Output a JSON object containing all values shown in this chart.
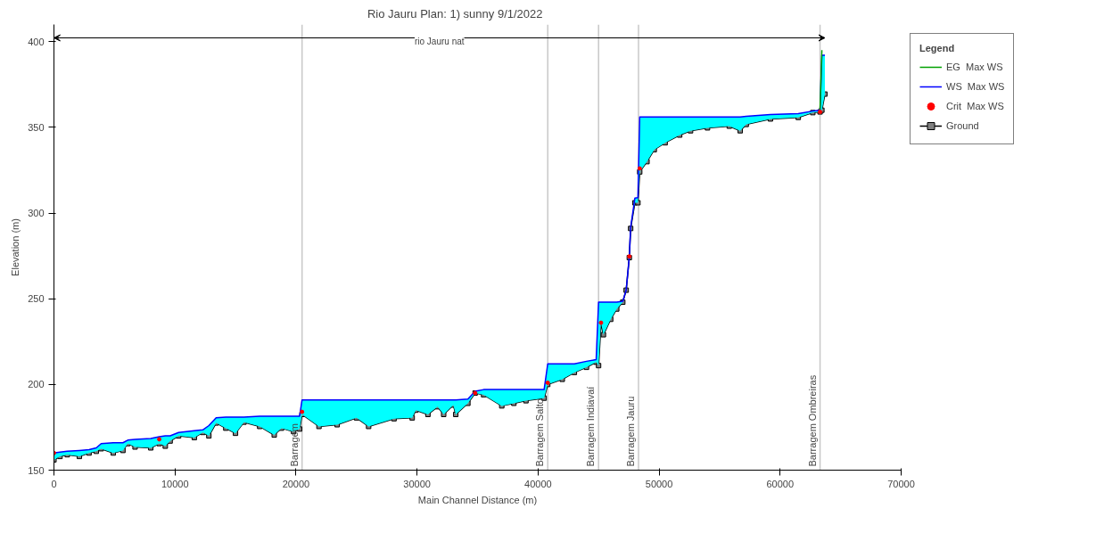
{
  "chart_data": {
    "type": "line",
    "title": "Rio Jauru       Plan:     1) sunny     9/1/2022",
    "xlabel": "Main Channel Distance (m)",
    "ylabel": "Elevation (m)",
    "legend_title": "Legend",
    "legend": "right",
    "x": [
      0,
      500,
      1100,
      2100,
      2900,
      3500,
      3900,
      4900,
      5700,
      6100,
      6700,
      8000,
      8700,
      9200,
      9600,
      10300,
      11600,
      12300,
      12800,
      13400,
      14200,
      15000,
      15700,
      17000,
      18200,
      18800,
      19800,
      20300,
      20500,
      21900,
      23400,
      25000,
      26000,
      28100,
      29600,
      29900,
      30900,
      31700,
      32200,
      33000,
      33200,
      34200,
      34800,
      35500,
      37000,
      38000,
      39000,
      40500,
      40800,
      42000,
      43000,
      44000,
      44800,
      45000,
      45200,
      45400,
      46000,
      46500,
      47000,
      47280,
      47540,
      47650,
      48000,
      48250,
      48400,
      49000,
      49600,
      50500,
      51700,
      52600,
      54000,
      55800,
      56700,
      57200,
      59200,
      61500,
      62700,
      63300,
      63450,
      63700
    ],
    "series": [
      {
        "name": "EG  Max WS",
        "color": "#00a000",
        "values": [
          null,
          null,
          null,
          null,
          null,
          null,
          null,
          null,
          null,
          null,
          null,
          null,
          null,
          null,
          null,
          null,
          null,
          null,
          null,
          null,
          null,
          null,
          null,
          null,
          null,
          null,
          null,
          null,
          null,
          null,
          null,
          null,
          null,
          null,
          null,
          null,
          null,
          null,
          null,
          null,
          null,
          null,
          null,
          null,
          null,
          null,
          null,
          null,
          null,
          null,
          null,
          null,
          null,
          null,
          null,
          null,
          null,
          null,
          null,
          null,
          null,
          null,
          null,
          null,
          null,
          null,
          null,
          null,
          null,
          null,
          null,
          null,
          null,
          null,
          null,
          null,
          null,
          360.5,
          395,
          null
        ]
      },
      {
        "name": "WS  Max WS",
        "color": "#0000ff",
        "values": [
          160,
          160.5,
          161,
          161.5,
          162,
          163,
          165.5,
          166,
          166,
          167.5,
          168,
          168.5,
          169.5,
          170,
          170,
          172,
          173,
          173.5,
          176,
          180.5,
          181,
          181,
          181,
          181.5,
          181.5,
          181.5,
          181.5,
          181.5,
          191,
          191,
          191,
          191,
          191,
          191,
          191,
          191,
          191,
          191,
          191,
          191,
          191,
          191.5,
          196,
          197,
          197,
          197,
          197,
          197,
          212,
          212,
          212,
          213.5,
          214.5,
          248,
          248,
          248,
          248,
          248,
          248.5,
          255,
          274.7,
          291.7,
          308.7,
          309,
          356,
          356,
          356,
          356,
          356,
          356,
          356,
          356,
          356,
          356.5,
          357.5,
          358,
          359.5,
          360,
          392,
          392
        ],
        "lower": [
          156,
          158,
          159,
          158,
          160,
          161,
          162.5,
          160,
          161.5,
          165.5,
          163.5,
          163,
          165.5,
          164,
          167,
          170,
          169,
          172,
          170,
          177.5,
          174.5,
          171.5,
          178,
          175.5,
          170.5,
          174.5,
          172.5,
          174,
          182.5,
          175.5,
          176.5,
          180.5,
          175.5,
          180,
          180.5,
          185,
          182.5,
          187,
          182.5,
          188,
          182.5,
          189,
          195,
          194,
          187.5,
          189,
          190.5,
          192,
          200,
          203,
          207,
          210,
          213,
          211,
          236,
          229,
          238,
          244,
          248,
          255,
          274,
          291,
          306,
          306,
          324,
          330,
          337,
          341,
          345.5,
          348,
          349.7,
          350.7,
          348,
          351.7,
          354.9,
          355.8,
          358.6,
          359,
          360,
          369.4
        ],
        "upper": [
          160,
          160.5,
          161,
          161.5,
          162,
          163,
          165.5,
          166,
          166,
          167.5,
          168,
          168.5,
          169.5,
          170,
          170,
          172,
          173,
          173.5,
          176,
          180.5,
          181,
          181,
          181,
          181.5,
          181.5,
          181.5,
          181.5,
          181.5,
          191,
          191,
          191,
          191,
          191,
          191,
          191,
          191,
          191,
          191,
          191,
          191,
          191,
          191.5,
          196,
          197,
          197,
          197,
          197,
          197,
          212,
          212,
          212,
          213.5,
          214.5,
          248,
          248,
          248,
          248,
          248,
          248.5,
          255,
          274.7,
          291.7,
          308.7,
          309,
          356,
          356,
          356,
          356,
          356,
          356,
          356,
          356,
          356,
          356.5,
          357.5,
          358,
          359.5,
          360,
          392,
          392
        ]
      },
      {
        "name": "Crit  Max WS",
        "type": "scatter",
        "color": "#ff0000",
        "marker": "circle",
        "values": [
          160,
          null,
          null,
          null,
          null,
          null,
          null,
          null,
          null,
          null,
          null,
          null,
          168,
          null,
          null,
          null,
          null,
          null,
          null,
          null,
          null,
          null,
          null,
          null,
          null,
          null,
          null,
          null,
          184,
          null,
          null,
          null,
          null,
          null,
          null,
          null,
          null,
          null,
          null,
          null,
          null,
          null,
          195,
          null,
          null,
          null,
          null,
          null,
          201,
          null,
          null,
          null,
          null,
          null,
          236,
          null,
          null,
          null,
          null,
          null,
          274.7,
          null,
          null,
          null,
          326,
          null,
          null,
          null,
          null,
          null,
          null,
          null,
          null,
          null,
          null,
          null,
          null,
          359,
          null,
          null
        ]
      },
      {
        "name": "Ground",
        "color": "#000000",
        "marker": "square",
        "values": [
          156,
          158,
          159,
          158,
          160,
          161,
          162.5,
          160,
          161.5,
          165.5,
          163.5,
          163,
          165.5,
          164,
          167,
          170,
          169,
          172,
          170,
          177.5,
          174.5,
          171.5,
          178,
          175.5,
          170.5,
          174.5,
          172.5,
          174,
          182.5,
          175.5,
          176.5,
          180.5,
          175.5,
          180,
          180.5,
          185,
          182.5,
          187,
          182.5,
          188,
          182.5,
          189,
          195,
          194,
          187.5,
          189,
          190.5,
          192,
          200,
          203,
          207,
          210,
          213,
          211,
          236,
          229,
          238,
          244,
          248,
          255,
          274,
          291,
          306,
          306,
          324,
          330,
          337,
          341,
          345.5,
          348,
          349.7,
          350.7,
          348,
          351.7,
          354.9,
          355.8,
          358.6,
          359,
          360,
          369.4
        ]
      }
    ],
    "xlim": [
      0,
      70000
    ],
    "xticks": [
      0,
      10000,
      20000,
      30000,
      40000,
      50000,
      60000,
      70000
    ],
    "ylim": [
      150,
      410
    ],
    "yticks": [
      150,
      200,
      250,
      300,
      350,
      400
    ],
    "grid": false,
    "ref_lines": [
      {
        "axis": "x",
        "value": 20500,
        "label": "Barragem",
        "color": "#c8c8c8"
      },
      {
        "axis": "x",
        "value": 40800,
        "label": "Barragem Salto",
        "color": "#c8c8c8"
      },
      {
        "axis": "x",
        "value": 45000,
        "label": "Barragem Indiavaí",
        "color": "#c8c8c8"
      },
      {
        "axis": "x",
        "value": 48300,
        "label": "Barragem Jauru",
        "color": "#c8c8c8"
      },
      {
        "axis": "x",
        "value": 63300,
        "label": "Barragem Ombreiras",
        "color": "#c8c8c8"
      }
    ],
    "annotations": [
      "rio Jauru nat"
    ]
  }
}
